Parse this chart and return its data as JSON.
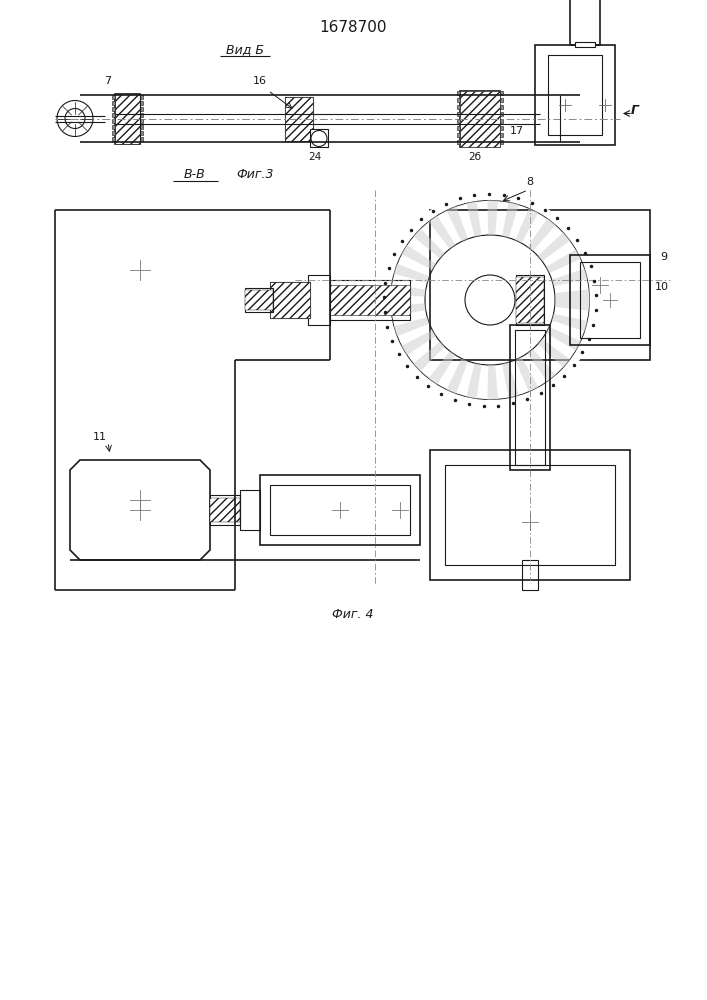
{
  "title": "1678700",
  "title_fontsize": 11,
  "fig_label_vid_b": "Вид Б",
  "fig_label_bb": "В-В",
  "fig_label_3": "Фиг.3",
  "fig_label_4": "Фиг. 4",
  "label_7": "7",
  "label_16": "16",
  "label_17": "17",
  "label_24": "24",
  "label_2b": "2б",
  "label_G": "Г",
  "label_8": "8",
  "label_9": "9",
  "label_10": "10",
  "label_11": "11",
  "line_color": "#1a1a1a",
  "bg_color": "#ffffff",
  "hatch_color": "#1a1a1a",
  "lw": 0.8,
  "lw_thick": 1.2
}
